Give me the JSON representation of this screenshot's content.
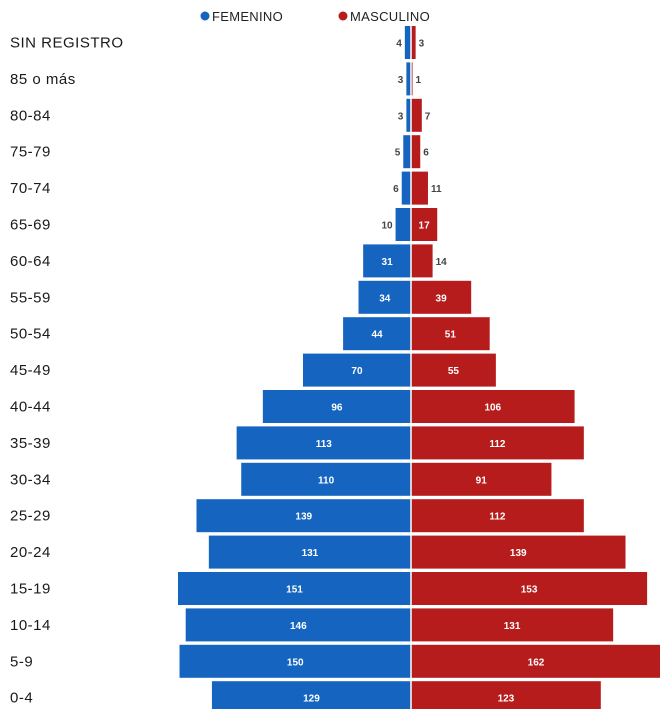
{
  "chart_data": {
    "type": "bar",
    "orientation": "horizontal-diverging",
    "categories": [
      "SIN REGISTRO",
      "85 o más",
      "80-84",
      "75-79",
      "70-74",
      "65-69",
      "60-64",
      "55-59",
      "50-54",
      "45-49",
      "40-44",
      "35-39",
      "30-34",
      "25-29",
      "20-24",
      "15-19",
      "10-14",
      "5-9",
      "0-4"
    ],
    "series": [
      {
        "name": "FEMENINO",
        "color": "#1565c0",
        "values": [
          4,
          3,
          3,
          5,
          6,
          10,
          31,
          34,
          44,
          70,
          96,
          113,
          110,
          139,
          131,
          151,
          146,
          150,
          129
        ]
      },
      {
        "name": "MASCULINO",
        "color": "#b71c1c",
        "values": [
          3,
          1,
          7,
          6,
          11,
          17,
          14,
          39,
          51,
          55,
          106,
          112,
          91,
          112,
          139,
          153,
          131,
          162,
          123
        ]
      }
    ],
    "legend_position": "top-center",
    "grid": false,
    "value_max": 162
  }
}
